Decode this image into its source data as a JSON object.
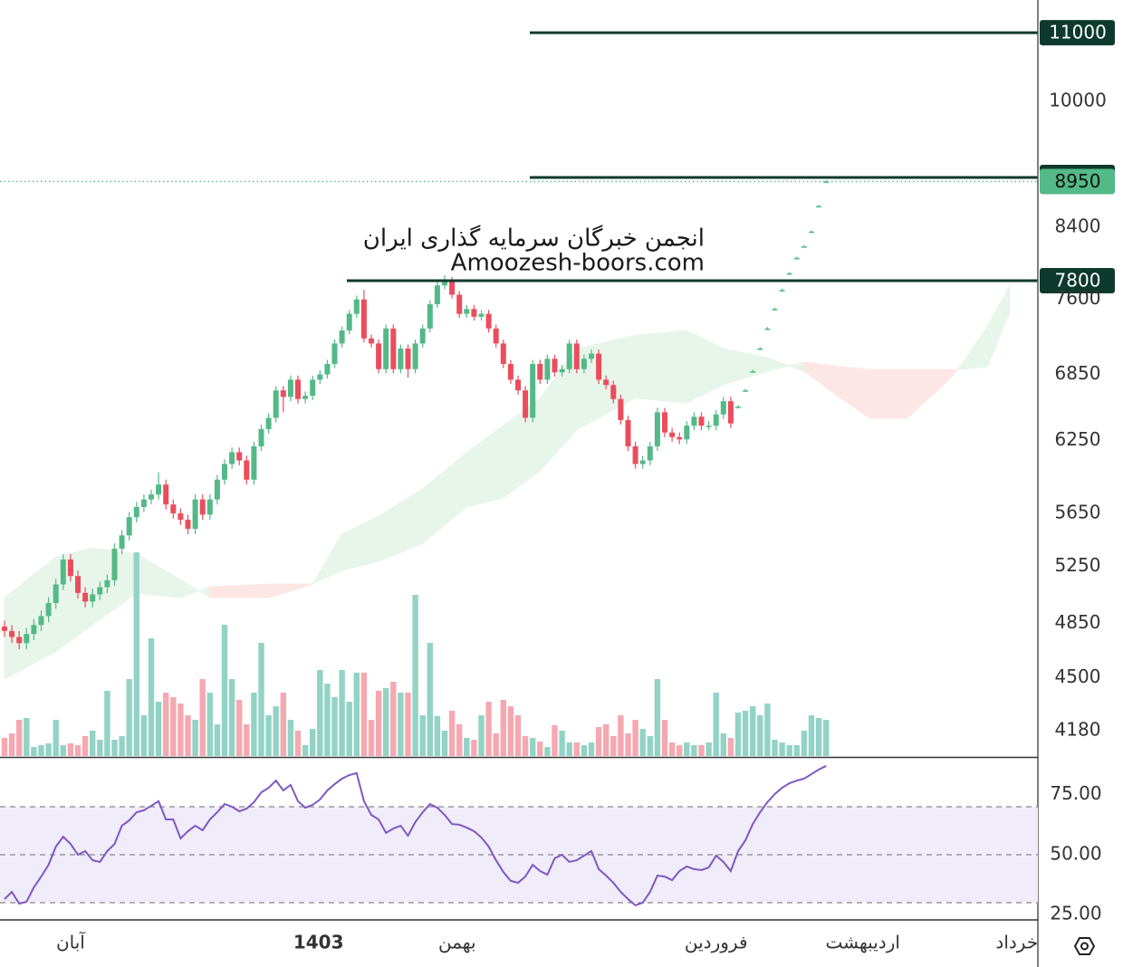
{
  "chart_data": {
    "type": "candlestick",
    "annotations": [
      "انجمن خبرگان سرمایه گذاری ایران",
      "Amoozesh-boors.com"
    ],
    "ylim": [
      4031,
      11510
    ],
    "log_scale": true,
    "yticks": [
      4180,
      4500,
      4850,
      5250,
      5650,
      6250,
      6850,
      7600,
      8400,
      10000
    ],
    "levels": [
      11000,
      9000,
      7800
    ],
    "last_price": 8950,
    "up_color": "#53b987",
    "down_color": "#eb4d5c",
    "volume_up_color": "#92d3c5",
    "volume_down_color": "#f6a8b0",
    "xticks": [
      {
        "value": 9,
        "label": "آبان"
      },
      {
        "value": 42.8,
        "label": "1403"
      },
      {
        "value": 61.7,
        "label": "بهمن"
      },
      {
        "value": 97,
        "label": "فروردین"
      },
      {
        "value": 117,
        "label": "اردیبهشت"
      },
      {
        "value": 138,
        "label": "خرداد"
      }
    ],
    "candles": [
      [
        4830,
        4870,
        4760,
        4800
      ],
      [
        4800,
        4840,
        4720,
        4760
      ],
      [
        4760,
        4800,
        4680,
        4720
      ],
      [
        4720,
        4820,
        4680,
        4780
      ],
      [
        4780,
        4880,
        4740,
        4840
      ],
      [
        4840,
        4940,
        4800,
        4900
      ],
      [
        4900,
        5030,
        4860,
        4990
      ],
      [
        4990,
        5160,
        4950,
        5120
      ],
      [
        5120,
        5340,
        5080,
        5300
      ],
      [
        5300,
        5340,
        5140,
        5180
      ],
      [
        5180,
        5220,
        5020,
        5060
      ],
      [
        5060,
        5100,
        4960,
        5000
      ],
      [
        5000,
        5090,
        4960,
        5050
      ],
      [
        5050,
        5140,
        5010,
        5100
      ],
      [
        5100,
        5190,
        5060,
        5150
      ],
      [
        5150,
        5420,
        5110,
        5380
      ],
      [
        5380,
        5520,
        5340,
        5480
      ],
      [
        5480,
        5660,
        5440,
        5620
      ],
      [
        5620,
        5740,
        5580,
        5700
      ],
      [
        5700,
        5800,
        5660,
        5760
      ],
      [
        5760,
        5840,
        5720,
        5800
      ],
      [
        5800,
        5980,
        5760,
        5880
      ],
      [
        5880,
        5920,
        5680,
        5720
      ],
      [
        5720,
        5760,
        5610,
        5650
      ],
      [
        5650,
        5690,
        5560,
        5600
      ],
      [
        5600,
        5640,
        5490,
        5530
      ],
      [
        5530,
        5800,
        5490,
        5760
      ],
      [
        5760,
        5800,
        5600,
        5640
      ],
      [
        5640,
        5800,
        5600,
        5760
      ],
      [
        5760,
        5960,
        5720,
        5920
      ],
      [
        5920,
        6090,
        5880,
        6050
      ],
      [
        6050,
        6190,
        6010,
        6150
      ],
      [
        6150,
        6190,
        6040,
        6080
      ],
      [
        6080,
        6120,
        5880,
        5920
      ],
      [
        5920,
        6240,
        5880,
        6200
      ],
      [
        6200,
        6390,
        6160,
        6350
      ],
      [
        6350,
        6490,
        6310,
        6450
      ],
      [
        6450,
        6740,
        6410,
        6700
      ],
      [
        6700,
        6740,
        6500,
        6640
      ],
      [
        6640,
        6840,
        6600,
        6800
      ],
      [
        6800,
        6840,
        6580,
        6620
      ],
      [
        6620,
        6690,
        6580,
        6650
      ],
      [
        6650,
        6840,
        6610,
        6800
      ],
      [
        6800,
        6890,
        6760,
        6850
      ],
      [
        6850,
        6990,
        6810,
        6950
      ],
      [
        6950,
        7190,
        6910,
        7150
      ],
      [
        7150,
        7320,
        7110,
        7280
      ],
      [
        7280,
        7490,
        7240,
        7450
      ],
      [
        7450,
        7640,
        7410,
        7600
      ],
      [
        7600,
        7700,
        7160,
        7200
      ],
      [
        7200,
        7240,
        7110,
        7150
      ],
      [
        7150,
        7190,
        6860,
        6900
      ],
      [
        6900,
        7340,
        6860,
        7300
      ],
      [
        7300,
        7340,
        6860,
        6900
      ],
      [
        6900,
        7140,
        6860,
        7100
      ],
      [
        7100,
        7140,
        6820,
        6900
      ],
      [
        6900,
        7190,
        6860,
        7150
      ],
      [
        7150,
        7340,
        7110,
        7300
      ],
      [
        7300,
        7590,
        7260,
        7550
      ],
      [
        7550,
        7790,
        7510,
        7750
      ],
      [
        7750,
        7860,
        7710,
        7800
      ],
      [
        7800,
        7840,
        7610,
        7650
      ],
      [
        7650,
        7690,
        7410,
        7450
      ],
      [
        7450,
        7540,
        7410,
        7500
      ],
      [
        7500,
        7540,
        7380,
        7420
      ],
      [
        7420,
        7490,
        7380,
        7450
      ],
      [
        7450,
        7490,
        7260,
        7300
      ],
      [
        7300,
        7340,
        7110,
        7150
      ],
      [
        7150,
        7190,
        6910,
        6950
      ],
      [
        6950,
        6990,
        6760,
        6800
      ],
      [
        6800,
        6840,
        6660,
        6700
      ],
      [
        6700,
        6740,
        6410,
        6450
      ],
      [
        6450,
        6990,
        6410,
        6950
      ],
      [
        6950,
        6990,
        6760,
        6800
      ],
      [
        6800,
        7040,
        6760,
        7000
      ],
      [
        7000,
        7040,
        6830,
        6870
      ],
      [
        6870,
        6940,
        6830,
        6900
      ],
      [
        6900,
        7190,
        6860,
        7150
      ],
      [
        7150,
        7190,
        6860,
        6900
      ],
      [
        6900,
        7040,
        6860,
        7000
      ],
      [
        7000,
        7090,
        6960,
        7050
      ],
      [
        7050,
        7090,
        6760,
        6800
      ],
      [
        6800,
        6840,
        6710,
        6750
      ],
      [
        6750,
        6790,
        6580,
        6620
      ],
      [
        6620,
        6660,
        6390,
        6430
      ],
      [
        6430,
        6470,
        6160,
        6200
      ],
      [
        6200,
        6240,
        6010,
        6050
      ],
      [
        6050,
        6120,
        6010,
        6080
      ],
      [
        6080,
        6240,
        6040,
        6200
      ],
      [
        6200,
        6540,
        6160,
        6500
      ],
      [
        6500,
        6540,
        6280,
        6320
      ],
      [
        6320,
        6360,
        6240,
        6280
      ],
      [
        6280,
        6320,
        6220,
        6260
      ],
      [
        6260,
        6420,
        6220,
        6380
      ],
      [
        6380,
        6500,
        6340,
        6460
      ],
      [
        6460,
        6500,
        6340,
        6380
      ],
      [
        6380,
        6420,
        6340,
        6380
      ],
      [
        6380,
        6520,
        6340,
        6480
      ],
      [
        6480,
        6640,
        6440,
        6600
      ],
      [
        6600,
        6640,
        6360,
        6400
      ],
      [
        6550,
        6565,
        6535,
        6550
      ],
      [
        6700,
        6715,
        6685,
        6700
      ],
      [
        6880,
        6895,
        6865,
        6880
      ],
      [
        7100,
        7115,
        7085,
        7100
      ],
      [
        7300,
        7315,
        7285,
        7300
      ],
      [
        7500,
        7515,
        7485,
        7500
      ],
      [
        7700,
        7715,
        7685,
        7700
      ],
      [
        7880,
        7895,
        7865,
        7880
      ],
      [
        8050,
        8065,
        8035,
        8050
      ],
      [
        8180,
        8195,
        8165,
        8180
      ],
      [
        8350,
        8365,
        8335,
        8350
      ],
      [
        8650,
        8665,
        8635,
        8650
      ],
      [
        8950,
        8965,
        8935,
        8950
      ]
    ],
    "volume": [
      20,
      25,
      40,
      42,
      10,
      12,
      14,
      40,
      12,
      14,
      12,
      22,
      28,
      18,
      72,
      18,
      22,
      85,
      225,
      45,
      130,
      60,
      70,
      65,
      58,
      45,
      40,
      85,
      70,
      35,
      145,
      85,
      62,
      35,
      70,
      125,
      45,
      55,
      70,
      40,
      28,
      12,
      30,
      95,
      80,
      65,
      95,
      60,
      92,
      92,
      40,
      72,
      75,
      82,
      70,
      70,
      178,
      45,
      125,
      44,
      28,
      50,
      35,
      20,
      18,
      45,
      60,
      25,
      62,
      55,
      45,
      22,
      20,
      16,
      10,
      34,
      28,
      15,
      15,
      12,
      15,
      32,
      35,
      22,
      45,
      25,
      40,
      30,
      22,
      85,
      40,
      15,
      12,
      15,
      12,
      12,
      15,
      70,
      25,
      20,
      48,
      50,
      55,
      45,
      58,
      18,
      15,
      12,
      12,
      28,
      45,
      42,
      40
    ],
    "cloud": {
      "index": [
        0,
        7,
        12,
        18,
        24,
        28,
        36,
        42,
        46,
        51,
        57,
        63,
        68,
        73,
        78,
        86,
        93,
        98,
        104,
        109,
        114,
        118,
        123,
        128,
        130,
        134,
        137
      ],
      "span_a": [
        5027,
        5319,
        5386,
        5339,
        5155,
        5027,
        5027,
        5122,
        5489,
        5629,
        5845,
        6146,
        6382,
        6627,
        7098,
        7232,
        7278,
        7098,
        7011,
        6880,
        6627,
        6447,
        6447,
        6752,
        6897,
        7325,
        7749
      ],
      "span_b": [
        4491,
        4663,
        4842,
        5058,
        5027,
        5103,
        5122,
        5122,
        5220,
        5286,
        5420,
        5700,
        5772,
        5994,
        6342,
        6627,
        6585,
        6752,
        6880,
        6967,
        6923,
        6897,
        6897,
        6897,
        6897,
        6923,
        7464
      ],
      "up_color": "#e8f5eb",
      "down_color": "#fde6e6"
    },
    "rsi": {
      "ylim": [
        23.2,
        90
      ],
      "yticks": [
        {
          "value": 75,
          "label": "75.00"
        },
        {
          "value": 50,
          "label": "50.00"
        },
        {
          "value": 25,
          "label": "25.00"
        }
      ],
      "bands": [
        30,
        50,
        70
      ],
      "color": "#7e57c2",
      "band_color": "#f0ecfa",
      "values": [
        31.5,
        34.5,
        29.6,
        30.4,
        36.4,
        40.9,
        45.8,
        53.4,
        57.5,
        54.5,
        50,
        51.5,
        47.7,
        47,
        51.5,
        54.5,
        62.1,
        64.3,
        67.7,
        68.5,
        70.4,
        72.3,
        64.7,
        64.7,
        56.8,
        59.8,
        62.1,
        60.2,
        64.7,
        67.7,
        71.1,
        70,
        68.1,
        69.2,
        71.9,
        76,
        77.9,
        80.9,
        76.8,
        79.1,
        72.3,
        69.6,
        70.8,
        73,
        76.8,
        79.4,
        81.7,
        83.2,
        84,
        72.3,
        66.6,
        64.7,
        59.1,
        60.9,
        62.1,
        57.9,
        63.6,
        67.7,
        71.1,
        69.6,
        66.6,
        62.8,
        62.5,
        61.3,
        59.8,
        57.2,
        53.4,
        47.7,
        42.8,
        39.1,
        38.3,
        40.9,
        45.8,
        43.2,
        41.7,
        48.5,
        50,
        47,
        47.7,
        49.6,
        51.5,
        44,
        41.3,
        38.3,
        34.5,
        31.5,
        28.9,
        30,
        34.5,
        41.3,
        40.9,
        39.4,
        43.2,
        45.1,
        44,
        43.6,
        44.7,
        49.6,
        47,
        43.2,
        51.5,
        56,
        62.8,
        67.7,
        71.9,
        75.3,
        77.9,
        79.8,
        80.9,
        81.7,
        83.6,
        85.5,
        87
      ]
    }
  }
}
